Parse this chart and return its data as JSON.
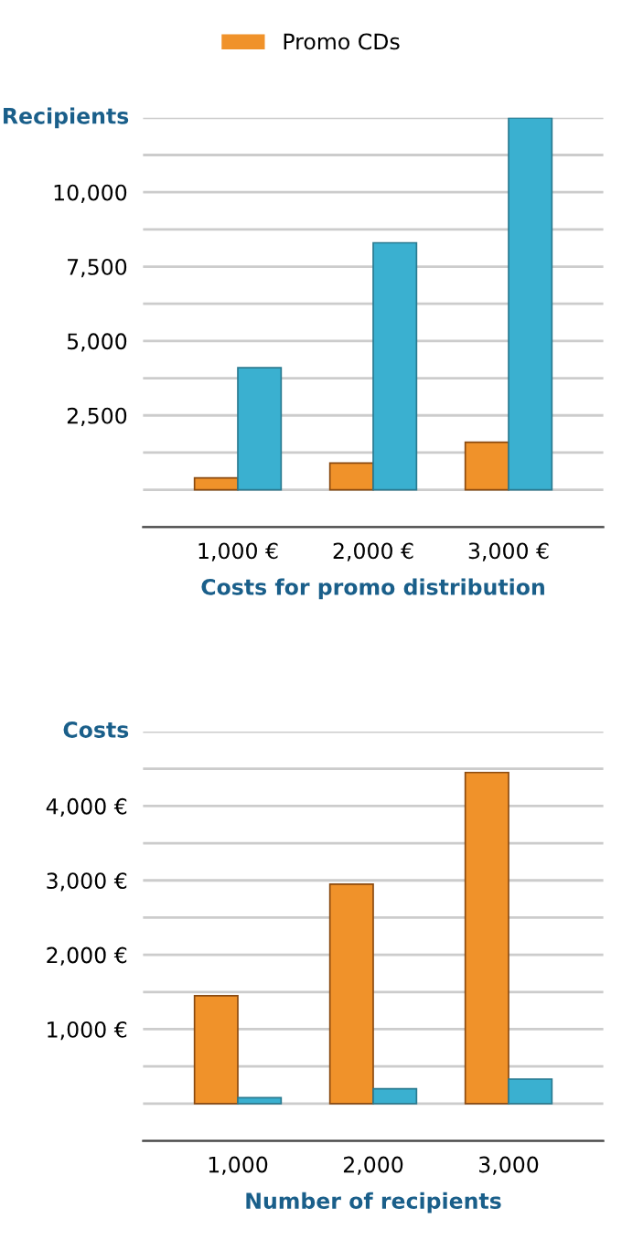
{
  "chart_data": [
    {
      "type": "bar",
      "ylabel": "Recipients",
      "xlabel": "Costs for promo distribution",
      "categories": [
        "1,000 €",
        "2,000 €",
        "3,000 €"
      ],
      "series": [
        {
          "name": "Promo CDs",
          "color": "#f0922a",
          "values": [
            400,
            900,
            1600
          ]
        },
        {
          "color": "#3ab0d0",
          "values": [
            4100,
            8300,
            12500
          ]
        }
      ],
      "ylim": [
        -1250,
        12500
      ],
      "yticks": [
        {
          "value": -1250,
          "label": null
        },
        {
          "value": 0,
          "label": null
        },
        {
          "value": 1250,
          "label": null
        },
        {
          "value": 2500,
          "label": "2,500"
        },
        {
          "value": 3750,
          "label": null
        },
        {
          "value": 5000,
          "label": "5,000"
        },
        {
          "value": 6250,
          "label": null
        },
        {
          "value": 7500,
          "label": "7,500"
        },
        {
          "value": 8750,
          "label": null
        },
        {
          "value": 10000,
          "label": "10,000"
        },
        {
          "value": 11250,
          "label": null
        },
        {
          "value": 12500,
          "label": null
        }
      ],
      "grid": "y",
      "legend": "top"
    },
    {
      "type": "bar",
      "ylabel": "Costs",
      "xlabel": "Number of recipients",
      "categories": [
        "1,000",
        "2,000",
        "3,000"
      ],
      "series": [
        {
          "color": "#f0922a",
          "values": [
            1450,
            2950,
            4450
          ]
        },
        {
          "color": "#3ab0d0",
          "values": [
            80,
            200,
            330
          ]
        }
      ],
      "ylim": [
        -500,
        5000
      ],
      "yticks": [
        {
          "value": -500,
          "label": null
        },
        {
          "value": 0,
          "label": null
        },
        {
          "value": 500,
          "label": null
        },
        {
          "value": 1000,
          "label": "1,000 €"
        },
        {
          "value": 1500,
          "label": null
        },
        {
          "value": 2000,
          "label": "2,000 €"
        },
        {
          "value": 2500,
          "label": null
        },
        {
          "value": 3000,
          "label": "3,000 €"
        },
        {
          "value": 3500,
          "label": null
        },
        {
          "value": 4000,
          "label": "4,000 €"
        },
        {
          "value": 4500,
          "label": null
        },
        {
          "value": 5000,
          "label": null
        }
      ],
      "grid": "y",
      "legend": false
    }
  ]
}
